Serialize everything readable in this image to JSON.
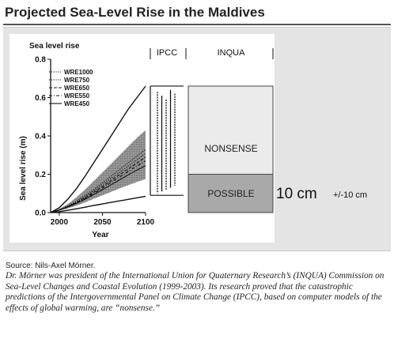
{
  "page": {
    "title": "Projected Sea-Level Rise in the Maldives",
    "source": "Source: Nils-Axel Mörner.",
    "caption": "Dr. Mörner was president of the International Union for Quaternary Research’s (INQUA) Commission on Sea-Level Changes and Coastal Evolution (1999-2003). Its research proved that the catastrophic predictions of the Intergovernmental Panel on Climate Change (IPCC), based on computer models of the effects of global warming, are “nonsense.”"
  },
  "chart_data": {
    "type": "line",
    "title": "Sea level rise",
    "xlabel": "Year",
    "ylabel": "Sea level rise (m)",
    "xlim": [
      1990,
      2100
    ],
    "ylim": [
      0,
      0.8
    ],
    "x_ticks": [
      2000,
      2050,
      2100
    ],
    "y_ticks": [
      0.0,
      0.2,
      0.4,
      0.6,
      0.8
    ],
    "y_tick_labels": [
      "0.0",
      "0.2",
      "0.4",
      "0.6",
      "0.8"
    ],
    "legend_position": "top-left",
    "x": [
      1990,
      2000,
      2010,
      2020,
      2030,
      2040,
      2050,
      2060,
      2070,
      2080,
      2090,
      2100
    ],
    "series": [
      {
        "name": "WRE1000",
        "style": "dotted",
        "values": [
          0,
          0.015,
          0.035,
          0.06,
          0.09,
          0.12,
          0.155,
          0.19,
          0.225,
          0.26,
          0.295,
          0.33
        ]
      },
      {
        "name": "WRE750",
        "style": "dotted",
        "values": [
          0,
          0.014,
          0.032,
          0.055,
          0.083,
          0.113,
          0.145,
          0.178,
          0.21,
          0.243,
          0.275,
          0.31
        ]
      },
      {
        "name": "WRE650",
        "style": "dashed",
        "values": [
          0,
          0.014,
          0.031,
          0.052,
          0.078,
          0.106,
          0.136,
          0.167,
          0.198,
          0.228,
          0.258,
          0.29
        ]
      },
      {
        "name": "WRE550",
        "style": "dash-dot",
        "values": [
          0,
          0.013,
          0.03,
          0.05,
          0.074,
          0.1,
          0.128,
          0.157,
          0.186,
          0.215,
          0.243,
          0.27
        ]
      },
      {
        "name": "WRE450",
        "style": "solid",
        "values": [
          0,
          0.013,
          0.029,
          0.048,
          0.07,
          0.094,
          0.119,
          0.145,
          0.171,
          0.197,
          0.222,
          0.245
        ]
      }
    ],
    "envelope": {
      "upper": [
        0,
        0.025,
        0.07,
        0.125,
        0.19,
        0.26,
        0.33,
        0.4,
        0.47,
        0.54,
        0.6,
        0.66
      ],
      "lower": [
        0,
        0.005,
        0.012,
        0.02,
        0.028,
        0.037,
        0.045,
        0.053,
        0.061,
        0.069,
        0.077,
        0.085
      ]
    },
    "shaded_band": {
      "upper": [
        0,
        0.018,
        0.045,
        0.08,
        0.12,
        0.165,
        0.21,
        0.255,
        0.3,
        0.345,
        0.39,
        0.43
      ],
      "lower": [
        0,
        0.01,
        0.022,
        0.036,
        0.053,
        0.072,
        0.09,
        0.108,
        0.126,
        0.143,
        0.16,
        0.175
      ]
    },
    "ipcc_panel": {
      "label": "IPCC",
      "box_range": [
        0.09,
        0.66
      ],
      "bars": [
        {
          "low": 0.1,
          "high": 0.63
        },
        {
          "low": 0.11,
          "high": 0.61
        },
        {
          "low": 0.12,
          "high": 0.59
        },
        {
          "low": 0.13,
          "high": 0.64
        },
        {
          "low": 0.14,
          "high": 0.62
        }
      ]
    },
    "inqua_panel": {
      "label": "INQUA",
      "regions": [
        {
          "label": "NONSENSE",
          "low": 0.2,
          "high": 0.66,
          "color": "#ebebeb"
        },
        {
          "label": "POSSIBLE",
          "low": 0.0,
          "high": 0.2,
          "color": "#a9a9a9"
        }
      ]
    },
    "annotation": {
      "main": "10 cm",
      "secondary": "+/-10 cm"
    }
  }
}
